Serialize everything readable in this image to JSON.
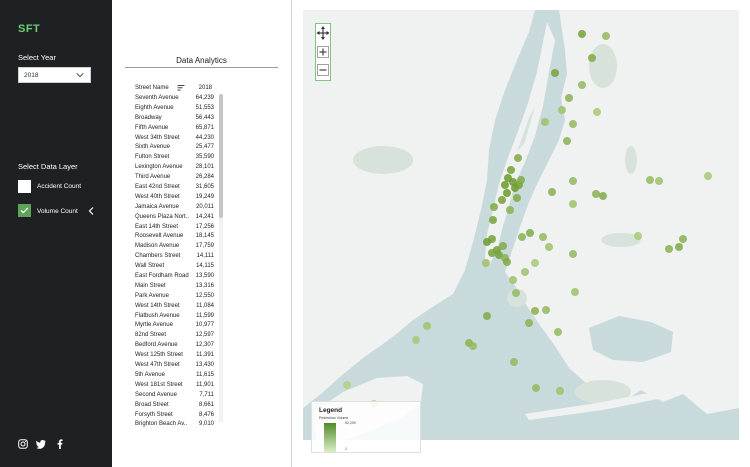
{
  "sidebar": {
    "brand": "SFT",
    "year_label": "Select Year",
    "year_value": "2018",
    "layer_label": "Select Data Layer",
    "layers": [
      {
        "label": "Accident Count",
        "checked": false
      },
      {
        "label": "Volume Count",
        "checked": true
      }
    ],
    "social_icons": [
      "instagram-icon",
      "twitter-icon",
      "facebook-icon"
    ]
  },
  "analytics": {
    "title": "Data Analytics",
    "columns": [
      "Street Name",
      "2018"
    ],
    "rows": [
      {
        "name": "Seventh Avenue",
        "value": "64,239"
      },
      {
        "name": "Eighth Avenue",
        "value": "51,553"
      },
      {
        "name": "Broadway",
        "value": "56,443"
      },
      {
        "name": "Fifth Avenue",
        "value": "65,871"
      },
      {
        "name": "West 34th Street",
        "value": "44,230"
      },
      {
        "name": "Sixth Avenue",
        "value": "25,477"
      },
      {
        "name": "Fulton Street",
        "value": "35,590"
      },
      {
        "name": "Lexington Avenue",
        "value": "28,101"
      },
      {
        "name": "Third Avenue",
        "value": "26,284"
      },
      {
        "name": "East 42nd Street",
        "value": "31,605"
      },
      {
        "name": "West 40th Street",
        "value": "19,249"
      },
      {
        "name": "Jamaica Avenue",
        "value": "20,011"
      },
      {
        "name": "Queens Plaza Nort..",
        "value": "14,241"
      },
      {
        "name": "East 14th Street",
        "value": "17,256"
      },
      {
        "name": "Roosevelt Avenue",
        "value": "18,145"
      },
      {
        "name": "Madison Avenue",
        "value": "17,759"
      },
      {
        "name": "Chambers Street",
        "value": "14,111"
      },
      {
        "name": "Wall Street",
        "value": "14,115"
      },
      {
        "name": "East Fordham Road",
        "value": "13,590"
      },
      {
        "name": "Main Street",
        "value": "13,316"
      },
      {
        "name": "Park Avenue",
        "value": "12,550"
      },
      {
        "name": "West 14th Street",
        "value": "11,084"
      },
      {
        "name": "Flatbush Avenue",
        "value": "11,599"
      },
      {
        "name": "Myrtle Avenue",
        "value": "10,977"
      },
      {
        "name": "82nd Street",
        "value": "12,597"
      },
      {
        "name": "Bedford Avenue",
        "value": "12,307"
      },
      {
        "name": "West 125th Street",
        "value": "11,391"
      },
      {
        "name": "West 47th Street",
        "value": "13,430"
      },
      {
        "name": "5th Avenue",
        "value": "11,615"
      },
      {
        "name": "West 181st Street",
        "value": "11,901"
      },
      {
        "name": "Second Avenue",
        "value": "7,711"
      },
      {
        "name": "Broad Street",
        "value": "8,661"
      },
      {
        "name": "Forsyth Street",
        "value": "8,476"
      },
      {
        "name": "Brighton Beach Av..",
        "value": "9,010"
      }
    ]
  },
  "map": {
    "controls": [
      "pan-icon",
      "zoom-in-icon",
      "zoom-out-icon"
    ],
    "legend": {
      "title": "Legend",
      "subtitle": "Pedestrian Volume",
      "max": "52,239",
      "min": "1"
    },
    "colors": {
      "water": "#c8dadc",
      "land": "#f0f1f1",
      "park": "#d7e3da",
      "point_dark": "#6b9a2c",
      "point_light": "#b8d888"
    }
  }
}
